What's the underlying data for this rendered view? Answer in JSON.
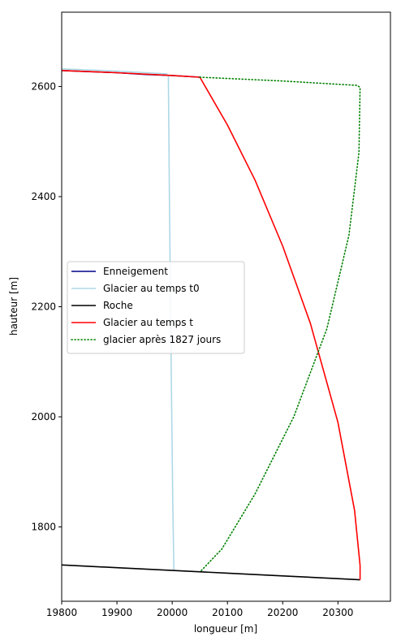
{
  "chart_data": {
    "type": "line",
    "xlabel": "longueur [m]",
    "ylabel": "hauteur [m]",
    "xlim": [
      19800,
      20395
    ],
    "ylim": [
      1665,
      2735
    ],
    "xticks": [
      19800,
      19900,
      20000,
      20100,
      20200,
      20300
    ],
    "yticks": [
      1800,
      2000,
      2200,
      2400,
      2600
    ],
    "grid": false,
    "legend_position": "center-left",
    "series": [
      {
        "name": "Enneigement",
        "color": "#00008b",
        "style": "solid",
        "x": [
          19800,
          19850,
          19900,
          19950,
          20000,
          20050
        ],
        "y": [
          2629,
          2627,
          2625,
          2622,
          2620,
          2617
        ]
      },
      {
        "name": "Glacier au temps t0",
        "color": "#add8e6",
        "style": "solid",
        "x": [
          19800,
          19900,
          19990,
          19993,
          19995,
          19998,
          20001,
          20003
        ],
        "y": [
          2632,
          2628,
          2623,
          2620,
          2400,
          2100,
          1850,
          1721
        ]
      },
      {
        "name": "Roche",
        "color": "#000000",
        "style": "solid",
        "x": [
          19800,
          19900,
          20000,
          20100,
          20200,
          20300,
          20340
        ],
        "y": [
          1731,
          1726,
          1721,
          1716,
          1711,
          1706,
          1704
        ]
      },
      {
        "name": "Glacier au temps t",
        "color": "#ff0000",
        "style": "solid",
        "x": [
          19800,
          19900,
          20000,
          20050,
          20100,
          20150,
          20200,
          20250,
          20300,
          20330,
          20340,
          20340
        ],
        "y": [
          2629,
          2625,
          2620,
          2617,
          2530,
          2430,
          2310,
          2170,
          1990,
          1830,
          1730,
          1704
        ]
      },
      {
        "name": "glacier après 1827 jours",
        "color": "#008000",
        "style": "dotted",
        "x": [
          20050,
          20200,
          20335,
          20340,
          20338,
          20320,
          20280,
          20220,
          20150,
          20090,
          20050
        ],
        "y": [
          2617,
          2610,
          2602,
          2598,
          2480,
          2330,
          2160,
          2000,
          1860,
          1760,
          1718
        ]
      }
    ]
  }
}
